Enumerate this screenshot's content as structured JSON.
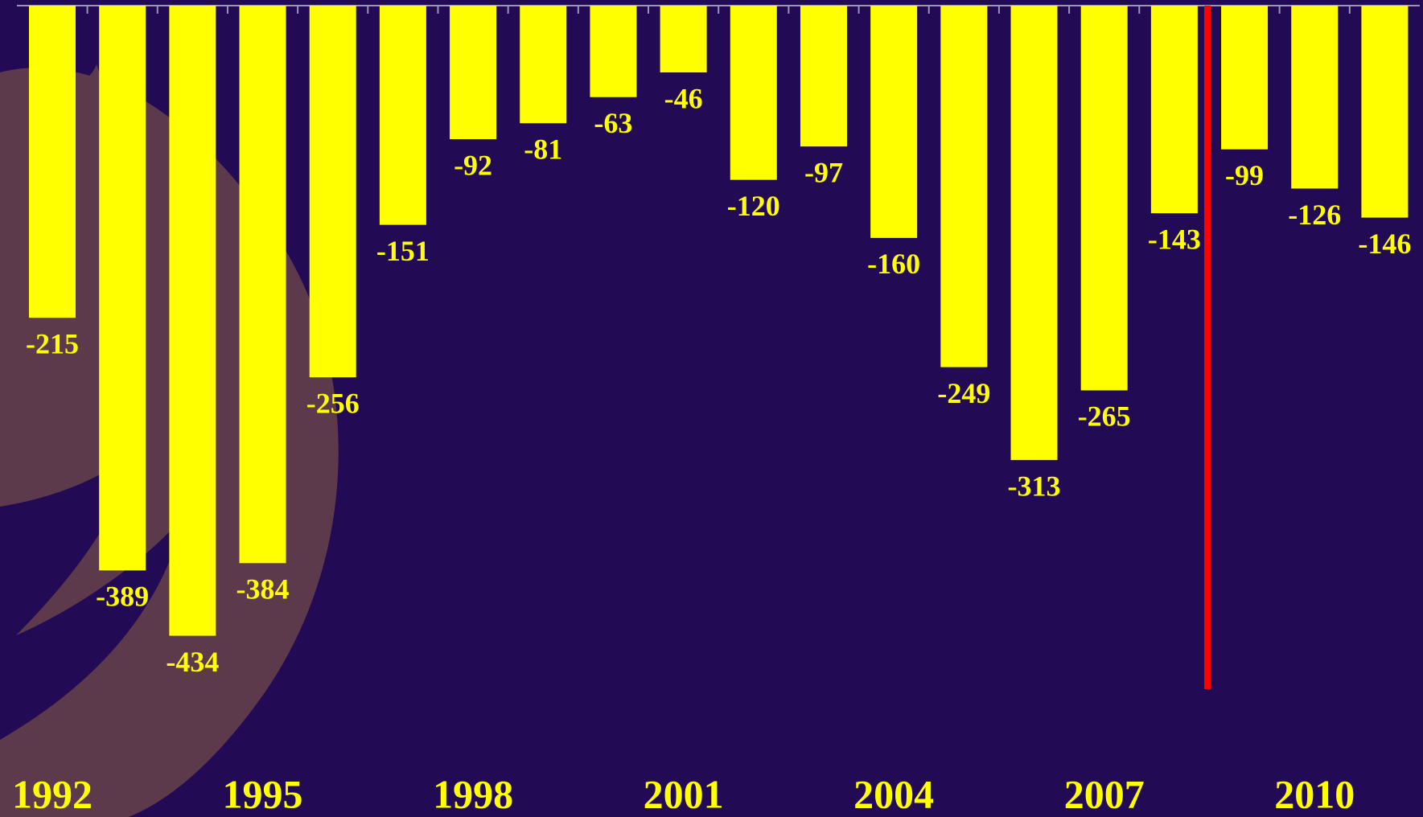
{
  "chart_data": {
    "type": "bar",
    "categories": [
      "1992",
      null,
      null,
      "1995",
      null,
      null,
      "1998",
      null,
      null,
      "2001",
      null,
      null,
      "2004",
      null,
      null,
      "2007",
      null,
      null,
      "2010",
      null
    ],
    "values": [
      -215,
      -389,
      -434,
      -384,
      -256,
      -151,
      -92,
      -81,
      -63,
      -46,
      -120,
      -97,
      -160,
      -249,
      -313,
      -265,
      -143,
      -99,
      -126,
      -146
    ],
    "color": "#ffff00",
    "ylim": [
      -540,
      0
    ]
  }
}
